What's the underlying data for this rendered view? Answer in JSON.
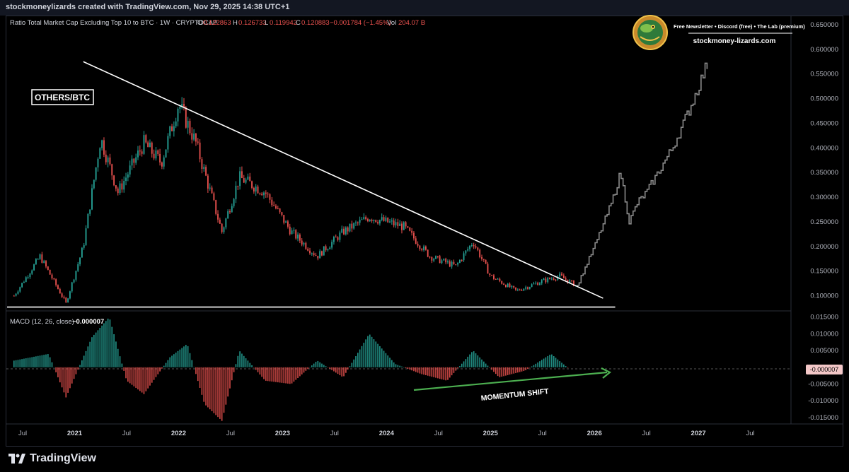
{
  "header": {
    "attribution": "stockmoneylizards created with TradingView.com, Nov 29, 2025 14:38 UTC+1"
  },
  "legend": {
    "symbol": "Ratio Total Market Cap Excluding Top 10 to BTC · 1W · CRYPTOCAP",
    "open_label": "O",
    "open": "0.122863",
    "high_label": "H",
    "high": "0.126733",
    "low_label": "L",
    "low": "0.119942",
    "close_label": "C",
    "close": "0.120883",
    "change": "−0.001784 (−1.45%)",
    "vol_label": "Vol",
    "vol": "204.07 B"
  },
  "promo": {
    "line1": "Free Newsletter • Discord (free) • The Lab (premium)",
    "site": "stockmoney-lizards.com"
  },
  "annotations": {
    "box_label": "OTHERS/BTC",
    "momentum": "MOMENTUM SHIFT"
  },
  "macd": {
    "label": "MACD (12, 26, close)",
    "value": "−0.000007",
    "badge": "-0.000007"
  },
  "footer": {
    "brand": "TradingView"
  },
  "colors": {
    "up": "#26a69a",
    "down": "#ef5350",
    "projection": "#8a8a8a",
    "arrow": "#4caf50",
    "line": "#ffffff"
  },
  "chart_data": [
    {
      "type": "line",
      "title": "OTHERS/BTC",
      "x_labels": [
        "Jul",
        "2021",
        "Jul",
        "2022",
        "Jul",
        "2023",
        "Jul",
        "2024",
        "Jul",
        "2025",
        "Jul",
        "2026",
        "Jul",
        "2027",
        "Jul"
      ],
      "y_ticks": [
        "0.650000",
        "0.600000",
        "0.550000",
        "0.500000",
        "0.450000",
        "0.400000",
        "0.350000",
        "0.300000",
        "0.250000",
        "0.200000",
        "0.150000",
        "0.100000"
      ],
      "ylim": [
        0.075,
        0.66
      ],
      "series": [
        {
          "name": "",
          "x": [
            "2020-06",
            "2020-09",
            "2020-12",
            "2021-02",
            "2021-04",
            "2021-06",
            "2021-09",
            "2021-11",
            "2022-01",
            "2022-03",
            "2022-06",
            "2022-08",
            "2022-11",
            "2023-02",
            "2023-05",
            "2023-08",
            "2023-11",
            "2024-01",
            "2024-03",
            "2024-06",
            "2024-09",
            "2024-11",
            "2025-01",
            "2025-04",
            "2025-07",
            "2025-09",
            "2025-11"
          ],
          "values": [
            0.1,
            0.18,
            0.085,
            0.2,
            0.42,
            0.31,
            0.41,
            0.37,
            0.49,
            0.41,
            0.23,
            0.34,
            0.31,
            0.23,
            0.18,
            0.23,
            0.26,
            0.25,
            0.24,
            0.18,
            0.16,
            0.21,
            0.14,
            0.11,
            0.13,
            0.14,
            0.12
          ]
        },
        {
          "name": "",
          "x": [
            "2025-11",
            "2026-01",
            "2026-03",
            "2026-04",
            "2026-05",
            "2026-06",
            "2026-07",
            "2026-08",
            "2026-10",
            "2026-12",
            "2027-02"
          ],
          "values": [
            0.12,
            0.2,
            0.29,
            0.35,
            0.25,
            0.29,
            0.31,
            0.34,
            0.4,
            0.48,
            0.57
          ]
        }
      ],
      "trendline": {
        "from": {
          "x": "2021-02",
          "y": 0.575
        },
        "to": {
          "x": "2026-02",
          "y": 0.095
        }
      },
      "support": {
        "y": 0.077
      }
    },
    {
      "type": "bar",
      "title": "MACD (12, 26, close)",
      "y_ticks": [
        "0.015000",
        "0.010000",
        "0.005000",
        "0.000000",
        "-0.005000",
        "-0.010000",
        "-0.015000"
      ],
      "ylim": [
        -0.0165,
        0.016
      ],
      "x": [
        "2020-06",
        "2020-10",
        "2020-12",
        "2021-03",
        "2021-05",
        "2021-07",
        "2021-09",
        "2021-12",
        "2022-02",
        "2022-04",
        "2022-06",
        "2022-08",
        "2022-11",
        "2023-02",
        "2023-05",
        "2023-08",
        "2023-11",
        "2024-02",
        "2024-05",
        "2024-08",
        "2024-11",
        "2025-02",
        "2025-05",
        "2025-08",
        "2025-10"
      ],
      "values": [
        0.002,
        0.004,
        -0.009,
        0.009,
        0.015,
        -0.004,
        -0.008,
        0.003,
        0.007,
        -0.011,
        -0.016,
        0.005,
        -0.004,
        -0.005,
        0.002,
        -0.003,
        0.01,
        0.001,
        -0.002,
        -0.004,
        0.005,
        -0.003,
        -0.001,
        0.004,
        -0.0003
      ]
    }
  ]
}
